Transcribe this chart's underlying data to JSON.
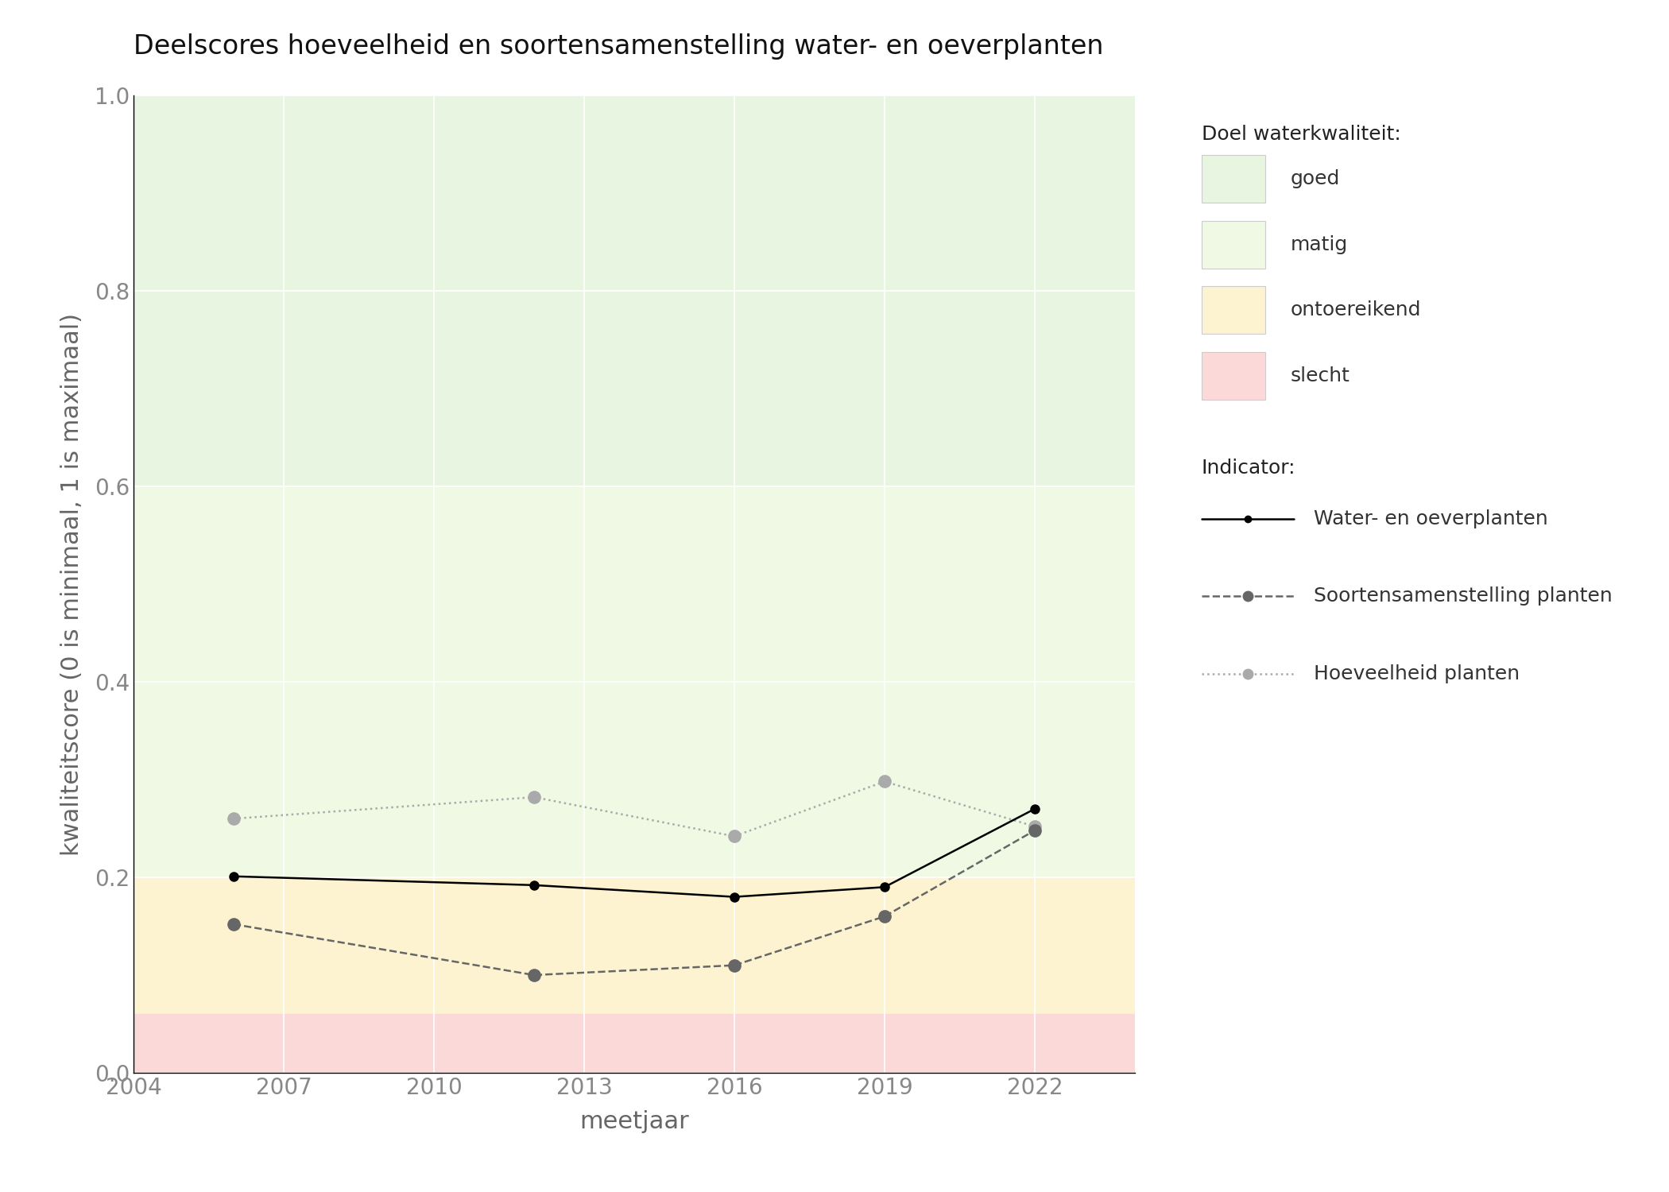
{
  "title": "Deelscores hoeveelheid en soortensamenstelling water- en oeverplanten",
  "xlabel": "meetjaar",
  "ylabel": "kwaliteitscore (0 is minimaal, 1 is maximaal)",
  "xlim": [
    2004,
    2024
  ],
  "ylim": [
    0.0,
    1.0
  ],
  "xticks": [
    2004,
    2007,
    2010,
    2013,
    2016,
    2019,
    2022
  ],
  "yticks": [
    0.0,
    0.2,
    0.4,
    0.6,
    0.8,
    1.0
  ],
  "background_color": "#ffffff",
  "zone_goed": {
    "ymin": 0.6,
    "ymax": 1.0,
    "color": "#e8f5e0"
  },
  "zone_matig": {
    "ymin": 0.2,
    "ymax": 0.6,
    "color": "#f0f9e4"
  },
  "zone_ontoereikend": {
    "ymin": 0.06,
    "ymax": 0.2,
    "color": "#fdf3d0"
  },
  "zone_slecht": {
    "ymin": 0.0,
    "ymax": 0.06,
    "color": "#fcd9d9"
  },
  "series_water_oever": {
    "years": [
      2006,
      2012,
      2016,
      2019,
      2022
    ],
    "values": [
      0.201,
      0.192,
      0.18,
      0.19,
      0.27
    ],
    "color": "#000000",
    "linestyle": "solid",
    "linewidth": 1.8,
    "marker": "o",
    "markersize": 8,
    "label": "Water- en oeverplanten"
  },
  "series_soorten": {
    "years": [
      2006,
      2012,
      2016,
      2019,
      2022
    ],
    "values": [
      0.152,
      0.1,
      0.11,
      0.16,
      0.248
    ],
    "color": "#666666",
    "linestyle": "dashed",
    "linewidth": 1.8,
    "marker": "o",
    "markersize": 11,
    "label": "Soortensamenstelling planten"
  },
  "series_hoeveelheid": {
    "years": [
      2006,
      2012,
      2016,
      2019,
      2022
    ],
    "values": [
      0.26,
      0.282,
      0.242,
      0.298,
      0.252
    ],
    "color": "#aaaaaa",
    "linestyle": "dotted",
    "linewidth": 1.8,
    "marker": "o",
    "markersize": 11,
    "label": "Hoeveelheid planten"
  },
  "legend_title_doel": "Doel waterkwaliteit:",
  "legend_title_indicator": "Indicator:",
  "doel_labels": [
    "goed",
    "matig",
    "ontoereikend",
    "slecht"
  ],
  "doel_colors": [
    "#e8f5e0",
    "#f0f9e4",
    "#fdf3d0",
    "#fcd9d9"
  ]
}
